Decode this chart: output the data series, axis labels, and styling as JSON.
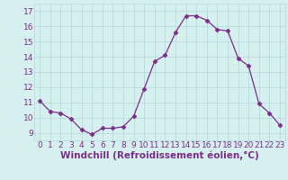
{
  "x": [
    0,
    1,
    2,
    3,
    4,
    5,
    6,
    7,
    8,
    9,
    10,
    11,
    12,
    13,
    14,
    15,
    16,
    17,
    18,
    19,
    20,
    21,
    22,
    23
  ],
  "y": [
    11.1,
    10.4,
    10.3,
    9.9,
    9.2,
    8.9,
    9.3,
    9.3,
    9.4,
    10.1,
    11.9,
    13.7,
    14.1,
    15.6,
    16.7,
    16.7,
    16.4,
    15.8,
    15.7,
    13.9,
    13.4,
    10.9,
    10.3,
    9.5
  ],
  "line_color": "#7b2d8b",
  "marker_color": "#7b2d8b",
  "bg_color": "#d6f0f0",
  "grid_color": "#b0d8d8",
  "xlabel": "Windchill (Refroidissement éolien,°C)",
  "ylim": [
    8.5,
    17.5
  ],
  "xlim": [
    -0.5,
    23.5
  ],
  "yticks": [
    9,
    10,
    11,
    12,
    13,
    14,
    15,
    16,
    17
  ],
  "xticks": [
    0,
    1,
    2,
    3,
    4,
    5,
    6,
    7,
    8,
    9,
    10,
    11,
    12,
    13,
    14,
    15,
    16,
    17,
    18,
    19,
    20,
    21,
    22,
    23
  ],
  "tick_fontsize": 6.5,
  "xlabel_fontsize": 7.5
}
